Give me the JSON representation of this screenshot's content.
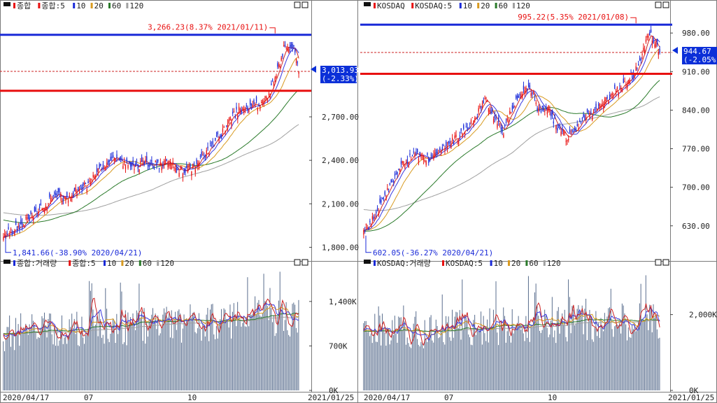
{
  "colors": {
    "up": "#e81010",
    "down": "#1a2ad8",
    "ma5": "#cc2222",
    "ma10": "#3a3ae0",
    "ma20": "#d89a20",
    "ma60": "#2a7a2a",
    "ma120": "#a0a0a0",
    "high_line": "#1a2ad8",
    "low_line": "#e81010",
    "last_dash": "#cc2222",
    "tag_bg": "#0b2fd8",
    "tag_fg": "#ffffff",
    "grid": "#888888"
  },
  "x_axis": {
    "tick_labels": [
      "2020/04/17",
      "07",
      "10",
      "2021/01/25"
    ]
  },
  "chart_data": [
    {
      "id": "kospi-price",
      "type": "candlestick",
      "title_icon": "box-icon",
      "legend": [
        {
          "marker": "red-box",
          "text": "종합"
        },
        {
          "marker": "red-box",
          "text": "종합:5"
        },
        {
          "marker": "blue-box",
          "text": "10"
        },
        {
          "marker": "orange-box",
          "text": "20"
        },
        {
          "marker": "green-box",
          "text": "60"
        },
        {
          "marker": "gray-box",
          "text": "120"
        }
      ],
      "ylim": [
        1720,
        3400
      ],
      "y_ticks": [
        1800,
        2100,
        2400,
        2700
      ],
      "y_tick_labels": [
        "1,800.00",
        "2,100.00",
        "2,400.00",
        "2,700.00"
      ],
      "high_value": 3266.23,
      "high_label": "3,266.23(8.37% 2021/01/11)",
      "low_value": 1841.66,
      "low_label": "1,841.66(-38.90% 2020/04/21)",
      "low_line": 2880,
      "last_value": 3013.93,
      "last_label": "3,013.93",
      "last_change": "(-2.33%)",
      "ma60_start": 1990,
      "ma120_start": 2040,
      "anchors": [
        [
          0,
          1880
        ],
        [
          10,
          1930
        ],
        [
          20,
          1990
        ],
        [
          30,
          2060
        ],
        [
          37,
          2130
        ],
        [
          42,
          2160
        ],
        [
          50,
          2140
        ],
        [
          60,
          2200
        ],
        [
          68,
          2230
        ],
        [
          75,
          2310
        ],
        [
          80,
          2360
        ],
        [
          90,
          2430
        ],
        [
          95,
          2390
        ],
        [
          105,
          2360
        ],
        [
          115,
          2380
        ],
        [
          125,
          2370
        ],
        [
          135,
          2380
        ],
        [
          140,
          2330
        ],
        [
          148,
          2340
        ],
        [
          155,
          2370
        ],
        [
          165,
          2480
        ],
        [
          175,
          2580
        ],
        [
          185,
          2710
        ],
        [
          190,
          2750
        ],
        [
          200,
          2760
        ],
        [
          208,
          2800
        ],
        [
          215,
          2900
        ],
        [
          220,
          3020
        ],
        [
          225,
          3170
        ],
        [
          230,
          3200
        ],
        [
          234,
          3140
        ],
        [
          237,
          3013.93
        ]
      ]
    },
    {
      "id": "kosdaq-price",
      "type": "candlestick",
      "title_icon": "box-icon",
      "legend": [
        {
          "marker": "red-box",
          "text": "KOSDAQ"
        },
        {
          "marker": "red-box",
          "text": "KOSDAQ:5"
        },
        {
          "marker": "blue-box",
          "text": "10"
        },
        {
          "marker": "orange-box",
          "text": "20"
        },
        {
          "marker": "green-box",
          "text": "60"
        },
        {
          "marker": "gray-box",
          "text": "120"
        }
      ],
      "ylim": [
        570,
        1012
      ],
      "y_ticks": [
        630,
        700,
        770,
        840,
        910,
        980
      ],
      "y_tick_labels": [
        "630.00",
        "700.00",
        "770.00",
        "840.00",
        "910.00",
        "980.00"
      ],
      "high_value": 995.22,
      "high_label": "995.22(5.35% 2021/01/08)",
      "low_value": 602.05,
      "low_label": "602.05(-36.27% 2020/04/21)",
      "low_line": 906,
      "last_value": 944.67,
      "last_label": "944.67",
      "last_change": "(-2.05%)",
      "ma60_start": 620,
      "ma120_start": 660,
      "anchors": [
        [
          0,
          620
        ],
        [
          10,
          650
        ],
        [
          20,
          700
        ],
        [
          30,
          740
        ],
        [
          40,
          760
        ],
        [
          50,
          750
        ],
        [
          60,
          760
        ],
        [
          70,
          780
        ],
        [
          80,
          800
        ],
        [
          90,
          830
        ],
        [
          98,
          860
        ],
        [
          105,
          820
        ],
        [
          112,
          800
        ],
        [
          118,
          840
        ],
        [
          125,
          870
        ],
        [
          133,
          880
        ],
        [
          140,
          840
        ],
        [
          148,
          840
        ],
        [
          155,
          810
        ],
        [
          162,
          790
        ],
        [
          170,
          800
        ],
        [
          178,
          830
        ],
        [
          185,
          840
        ],
        [
          195,
          860
        ],
        [
          205,
          880
        ],
        [
          215,
          900
        ],
        [
          222,
          930
        ],
        [
          228,
          980
        ],
        [
          232,
          970
        ],
        [
          237,
          944.67
        ]
      ]
    },
    {
      "id": "kospi-volume",
      "type": "volume-bar",
      "title_icon": "box-icon",
      "legend": [
        {
          "marker": "blue-box",
          "text": "종합:거래량"
        },
        {
          "marker": "red-box",
          "text": "종합:5"
        },
        {
          "marker": "blue-box",
          "text": "10"
        },
        {
          "marker": "orange-box",
          "text": "20"
        },
        {
          "marker": "green-box",
          "text": "60"
        },
        {
          "marker": "gray-box",
          "text": "120"
        }
      ],
      "ylim": [
        0,
        1850
      ],
      "y_ticks": [
        0,
        700,
        1400
      ],
      "y_tick_labels": [
        "0K",
        "700K",
        "1,400K"
      ],
      "base": 900,
      "trend": 250,
      "spread": 300
    },
    {
      "id": "kosdaq-volume",
      "type": "volume-bar",
      "title_icon": "box-icon",
      "legend": [
        {
          "marker": "blue-box",
          "text": "KOSDAQ:거래량"
        },
        {
          "marker": "red-box",
          "text": "KOSDAQ:5"
        },
        {
          "marker": "blue-box",
          "text": "10"
        },
        {
          "marker": "orange-box",
          "text": "20"
        },
        {
          "marker": "green-box",
          "text": "60"
        },
        {
          "marker": "gray-box",
          "text": "120"
        }
      ],
      "ylim": [
        0,
        3100
      ],
      "y_ticks": [
        0,
        2000
      ],
      "y_tick_labels": [
        "0K",
        "2,000K"
      ],
      "base": 1550,
      "trend": 300,
      "spread": 500
    }
  ]
}
